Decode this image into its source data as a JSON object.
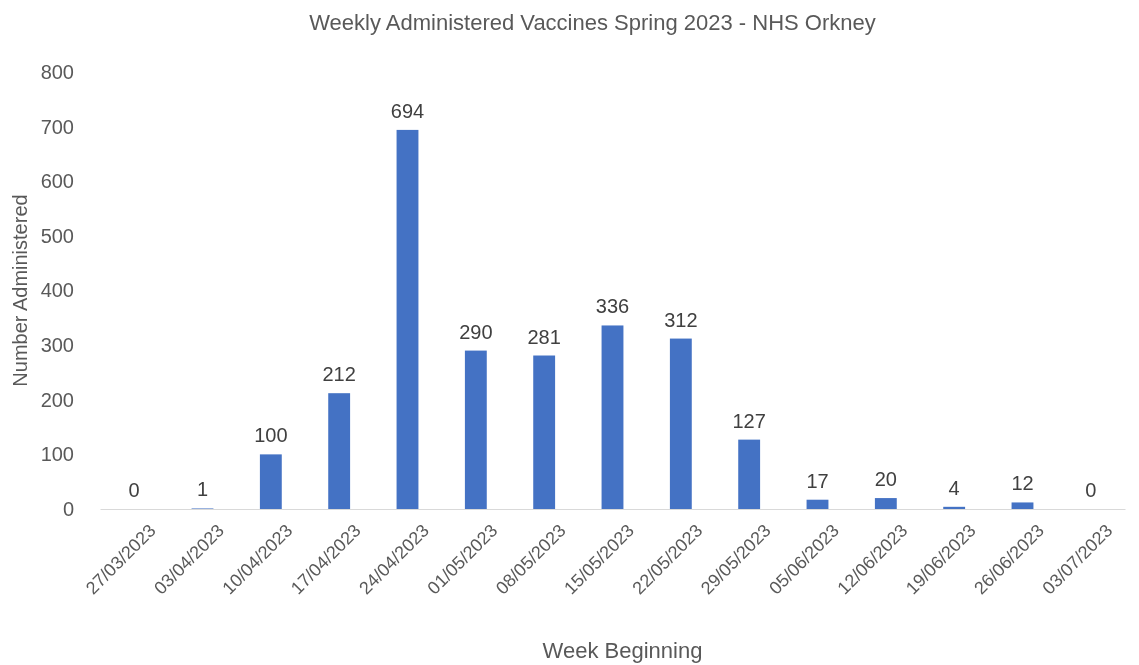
{
  "chart_data": {
    "type": "bar",
    "title": "Weekly Administered Vaccines Spring 2023 - NHS Orkney",
    "xlabel": "Week Beginning",
    "ylabel": "Number Administered",
    "categories": [
      "27/03/2023",
      "03/04/2023",
      "10/04/2023",
      "17/04/2023",
      "24/04/2023",
      "01/05/2023",
      "08/05/2023",
      "15/05/2023",
      "22/05/2023",
      "29/05/2023",
      "05/06/2023",
      "12/06/2023",
      "19/06/2023",
      "26/06/2023",
      "03/07/2023"
    ],
    "values": [
      0,
      1,
      100,
      212,
      694,
      290,
      281,
      336,
      312,
      127,
      17,
      20,
      4,
      12,
      0
    ],
    "color": "#4472c4",
    "ylim": [
      0,
      800
    ],
    "yticks": [
      0,
      100,
      200,
      300,
      400,
      500,
      600,
      700,
      800
    ],
    "grid": false,
    "data_labels": true
  }
}
